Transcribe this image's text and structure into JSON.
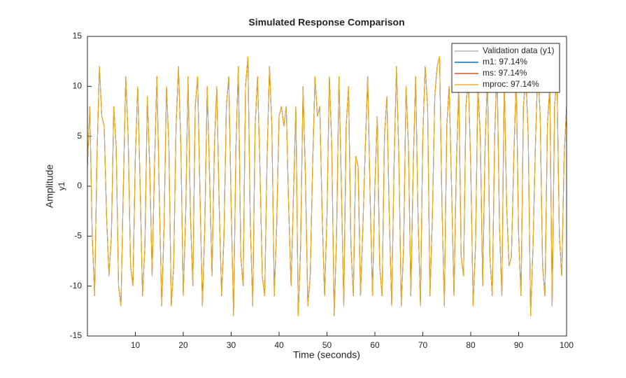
{
  "chart_data": {
    "type": "line",
    "title": "Simulated Response Comparison",
    "xlabel": "Time (seconds)",
    "ylabel": "Amplitude",
    "ylabel2": "y1",
    "x": [
      0,
      0.5,
      1,
      1.5,
      2,
      2.5,
      3,
      3.5,
      4,
      4.5,
      5,
      5.5,
      6,
      6.5,
      7,
      7.5,
      8,
      8.5,
      9,
      9.5,
      10,
      10.5,
      11,
      11.5,
      12,
      12.5,
      13,
      13.5,
      14,
      14.5,
      15,
      15.5,
      16,
      16.5,
      17,
      17.5,
      18,
      18.5,
      19,
      19.5,
      20,
      20.5,
      21,
      21.5,
      22,
      22.5,
      23,
      23.5,
      24,
      24.5,
      25,
      25.5,
      26,
      26.5,
      27,
      27.5,
      28,
      28.5,
      29,
      29.5,
      30,
      30.5,
      31,
      31.5,
      32,
      32.5,
      33,
      33.5,
      34,
      34.5,
      35,
      35.5,
      36,
      36.5,
      37,
      37.5,
      38,
      38.5,
      39,
      39.5,
      40,
      40.5,
      41,
      41.5,
      42,
      42.5,
      43,
      43.5,
      44,
      44.5,
      45,
      45.5,
      46,
      46.5,
      47,
      47.5,
      48,
      48.5,
      49,
      49.5,
      50,
      50.5,
      51,
      51.5,
      52,
      52.5,
      53,
      53.5,
      54,
      54.5,
      55,
      55.5,
      56,
      56.5,
      57,
      57.5,
      58,
      58.5,
      59,
      59.5,
      60,
      60.5,
      61,
      61.5,
      62,
      62.5,
      63,
      63.5,
      64,
      64.5,
      65,
      65.5,
      66,
      66.5,
      67,
      67.5,
      68,
      68.5,
      69,
      69.5,
      70,
      70.5,
      71,
      71.5,
      72,
      72.5,
      73,
      73.5,
      74,
      74.5,
      75,
      75.5,
      76,
      76.5,
      77,
      77.5,
      78,
      78.5,
      79,
      79.5,
      80,
      80.5,
      81,
      81.5,
      82,
      82.5,
      83,
      83.5,
      84,
      84.5,
      85,
      85.5,
      86,
      86.5,
      87,
      87.5,
      88,
      88.5,
      89,
      89.5,
      90,
      90.5,
      91,
      91.5,
      92,
      92.5,
      93,
      93.5,
      94,
      94.5,
      95,
      95.5,
      96,
      96.5,
      97,
      97.5,
      98,
      98.5,
      99,
      99.5,
      100
    ],
    "series": [
      {
        "name": "Validation data (y1)",
        "color": "#b3b3b3",
        "values": [
          2,
          8,
          -5,
          -11,
          3,
          12,
          7,
          6,
          -3,
          -9,
          -5,
          8,
          4,
          -10,
          -12,
          0,
          11,
          5,
          -8,
          -10,
          3,
          10,
          0,
          -11,
          -6,
          9,
          2,
          -9,
          2,
          11,
          -1,
          -12,
          -4,
          10,
          4,
          -12,
          -8,
          6,
          12,
          4,
          -11,
          -3,
          11,
          -3,
          -10,
          8,
          11,
          -1,
          -12,
          -4,
          10,
          1,
          -9,
          4,
          10,
          -2,
          -11,
          -5,
          8,
          11,
          -2,
          -13,
          4,
          12,
          -7,
          -10,
          10,
          13,
          -4,
          -12,
          6,
          11,
          2,
          -9,
          -11,
          3,
          12,
          6,
          -11,
          -4,
          7,
          8,
          6,
          8,
          -2,
          -10,
          -1,
          8,
          -13,
          -6,
          10,
          1,
          -12,
          -9,
          2,
          11,
          7,
          8,
          -3,
          -11,
          -3,
          11,
          4,
          -13,
          -5,
          11,
          0,
          -12,
          6,
          10,
          -6,
          -11,
          3,
          2,
          -11,
          -4,
          4,
          11,
          -1,
          -11,
          0,
          7,
          -8,
          -11,
          5,
          9,
          -3,
          -12,
          2,
          12,
          3,
          -12,
          -6,
          10,
          4,
          -11,
          2,
          11,
          -3,
          -12,
          5,
          12,
          8,
          -11,
          -3,
          9,
          12,
          13,
          -2,
          -12,
          6,
          10,
          0,
          -11,
          2,
          10,
          -7,
          -9,
          8,
          11,
          2,
          -12,
          -6,
          10,
          5,
          -10,
          4,
          11,
          -7,
          -11,
          5,
          12,
          -4,
          -11,
          11,
          -2,
          -8,
          -7,
          3,
          11,
          -5,
          -11,
          8,
          11,
          5,
          -13,
          -6,
          4,
          12,
          7,
          -8,
          -11,
          6,
          10,
          -12,
          8,
          11,
          -5,
          -9,
          3,
          8
        ]
      },
      {
        "name": "m1: 97.14%",
        "color": "#0072bd",
        "values": [
          2,
          8,
          -5,
          -11,
          3,
          12,
          7,
          6,
          -3,
          -9,
          -5,
          8,
          4,
          -10,
          -12,
          0,
          11,
          5,
          -8,
          -10,
          3,
          10,
          0,
          -11,
          -6,
          9,
          2,
          -9,
          2,
          11,
          -1,
          -12,
          -4,
          10,
          4,
          -12,
          -8,
          6,
          12,
          4,
          -11,
          -3,
          11,
          -3,
          -10,
          8,
          11,
          -1,
          -12,
          -4,
          10,
          1,
          -9,
          4,
          10,
          -2,
          -11,
          -5,
          8,
          11,
          -2,
          -13,
          4,
          12,
          -7,
          -10,
          10,
          13,
          -4,
          -12,
          6,
          11,
          2,
          -9,
          -11,
          3,
          12,
          6,
          -11,
          -4,
          7,
          8,
          6,
          8,
          -2,
          -10,
          -1,
          8,
          -13,
          -6,
          10,
          1,
          -12,
          -9,
          2,
          11,
          7,
          8,
          -3,
          -11,
          -3,
          11,
          4,
          -13,
          -5,
          11,
          0,
          -12,
          6,
          10,
          -6,
          -11,
          3,
          2,
          -11,
          -4,
          4,
          11,
          -1,
          -11,
          0,
          7,
          -8,
          -11,
          5,
          9,
          -3,
          -12,
          2,
          12,
          3,
          -12,
          -6,
          10,
          4,
          -11,
          2,
          11,
          -3,
          -12,
          5,
          12,
          8,
          -11,
          -3,
          9,
          12,
          13,
          -2,
          -12,
          6,
          10,
          0,
          -11,
          2,
          10,
          -7,
          -9,
          8,
          11,
          2,
          -12,
          -6,
          10,
          5,
          -10,
          4,
          11,
          -7,
          -11,
          5,
          12,
          -4,
          -11,
          11,
          -2,
          -8,
          -7,
          3,
          11,
          -5,
          -11,
          8,
          11,
          5,
          -13,
          -6,
          4,
          12,
          7,
          -8,
          -11,
          6,
          10,
          -12,
          8,
          11,
          -5,
          -9,
          3,
          8
        ]
      },
      {
        "name": "ms: 97.14%",
        "color": "#d95319",
        "values": [
          2,
          8,
          -5,
          -11,
          3,
          12,
          7,
          6,
          -3,
          -9,
          -5,
          8,
          4,
          -10,
          -12,
          0,
          11,
          5,
          -8,
          -10,
          3,
          10,
          0,
          -11,
          -6,
          9,
          2,
          -9,
          2,
          11,
          -1,
          -12,
          -4,
          10,
          4,
          -12,
          -8,
          6,
          12,
          4,
          -11,
          -3,
          11,
          -3,
          -10,
          8,
          11,
          -1,
          -12,
          -4,
          10,
          1,
          -9,
          4,
          10,
          -2,
          -11,
          -5,
          8,
          11,
          -2,
          -13,
          4,
          12,
          -7,
          -10,
          10,
          13,
          -4,
          -12,
          6,
          11,
          2,
          -9,
          -11,
          3,
          12,
          6,
          -11,
          -4,
          7,
          8,
          6,
          8,
          -2,
          -10,
          -1,
          8,
          -13,
          -6,
          10,
          1,
          -12,
          -9,
          2,
          11,
          7,
          8,
          -3,
          -11,
          -3,
          11,
          4,
          -13,
          -5,
          11,
          0,
          -12,
          6,
          10,
          -6,
          -11,
          3,
          2,
          -11,
          -4,
          4,
          11,
          -1,
          -11,
          0,
          7,
          -8,
          -11,
          5,
          9,
          -3,
          -12,
          2,
          12,
          3,
          -12,
          -6,
          10,
          4,
          -11,
          2,
          11,
          -3,
          -12,
          5,
          12,
          8,
          -11,
          -3,
          9,
          12,
          13,
          -2,
          -12,
          6,
          10,
          0,
          -11,
          2,
          10,
          -7,
          -9,
          8,
          11,
          2,
          -12,
          -6,
          10,
          5,
          -10,
          4,
          11,
          -7,
          -11,
          5,
          12,
          -4,
          -11,
          11,
          -2,
          -8,
          -7,
          3,
          11,
          -5,
          -11,
          8,
          11,
          5,
          -13,
          -6,
          4,
          12,
          7,
          -8,
          -11,
          6,
          10,
          -12,
          8,
          11,
          -5,
          -9,
          3,
          8
        ]
      },
      {
        "name": "mproc: 97.14%",
        "color": "#edb120",
        "values": [
          2,
          8,
          -5,
          -11,
          3,
          12,
          7,
          6,
          -3,
          -9,
          -5,
          8,
          4,
          -10,
          -12,
          0,
          11,
          5,
          -8,
          -10,
          3,
          10,
          0,
          -11,
          -6,
          9,
          2,
          -9,
          2,
          11,
          -1,
          -12,
          -4,
          10,
          4,
          -12,
          -8,
          6,
          12,
          4,
          -11,
          -3,
          11,
          -3,
          -10,
          8,
          11,
          -1,
          -12,
          -4,
          10,
          1,
          -9,
          4,
          10,
          -2,
          -11,
          -5,
          8,
          11,
          -2,
          -13,
          4,
          12,
          -7,
          -10,
          10,
          13,
          -4,
          -12,
          6,
          11,
          2,
          -9,
          -11,
          3,
          12,
          6,
          -11,
          -4,
          7,
          8,
          6,
          8,
          -2,
          -10,
          -1,
          8,
          -13,
          -6,
          10,
          1,
          -12,
          -9,
          2,
          11,
          7,
          8,
          -3,
          -11,
          -3,
          11,
          4,
          -13,
          -5,
          11,
          0,
          -12,
          6,
          10,
          -6,
          -11,
          3,
          2,
          -11,
          -4,
          4,
          11,
          -1,
          -11,
          0,
          7,
          -8,
          -11,
          5,
          9,
          -3,
          -12,
          2,
          12,
          3,
          -12,
          -6,
          10,
          4,
          -11,
          2,
          11,
          -3,
          -12,
          5,
          12,
          8,
          -11,
          -3,
          9,
          12,
          13,
          -2,
          -12,
          6,
          10,
          0,
          -11,
          2,
          10,
          -7,
          -9,
          8,
          11,
          2,
          -12,
          -6,
          10,
          5,
          -10,
          4,
          11,
          -7,
          -11,
          5,
          12,
          -4,
          -11,
          11,
          -2,
          -8,
          -7,
          3,
          11,
          -5,
          -11,
          8,
          11,
          5,
          -13,
          -6,
          4,
          12,
          7,
          -8,
          -11,
          6,
          10,
          -12,
          8,
          11,
          -5,
          -9,
          3,
          8
        ]
      }
    ],
    "xlim": [
      0,
      100
    ],
    "xticks": [
      10,
      20,
      30,
      40,
      50,
      60,
      70,
      80,
      90,
      100
    ],
    "ylim": [
      -15,
      15
    ],
    "yticks": [
      -15,
      -10,
      -5,
      0,
      5,
      10,
      15
    ],
    "grid": false,
    "legend": "northeast"
  }
}
